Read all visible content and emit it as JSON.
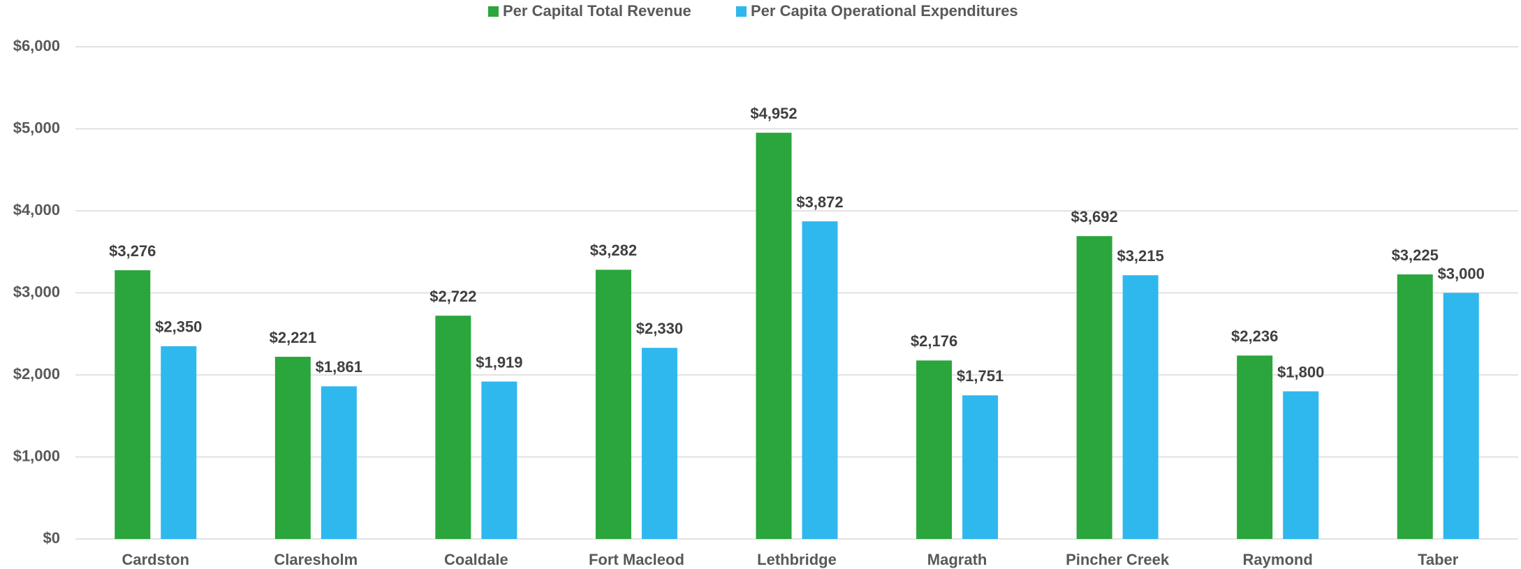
{
  "chart_data": {
    "type": "bar",
    "categories": [
      "Cardston",
      "Claresholm",
      "Coaldale",
      "Fort Macleod",
      "Lethbridge",
      "Magrath",
      "Pincher Creek",
      "Raymond",
      "Taber"
    ],
    "series": [
      {
        "name": "Per Capital Total Revenue",
        "color": "#2aa63c",
        "values": [
          3276,
          2221,
          2722,
          3282,
          4952,
          2176,
          3692,
          2236,
          3225
        ],
        "value_labels": [
          "$3,276",
          "$2,221",
          "$2,722",
          "$3,282",
          "$4,952",
          "$2,176",
          "$3,692",
          "$2,236",
          "$3,225"
        ]
      },
      {
        "name": "Per Capita Operational Expenditures",
        "color": "#2eb8ee",
        "values": [
          2350,
          1861,
          1919,
          2330,
          3872,
          1751,
          3215,
          1800,
          3000
        ],
        "value_labels": [
          "$2,350",
          "$1,861",
          "$1,919",
          "$2,330",
          "$3,872",
          "$1,751",
          "$3,215",
          "$1,800",
          "$3,000"
        ]
      }
    ],
    "ylim": [
      0,
      6000
    ],
    "yticks": [
      {
        "value": 0,
        "label": "$0"
      },
      {
        "value": 1000,
        "label": "$1,000"
      },
      {
        "value": 2000,
        "label": "$2,000"
      },
      {
        "value": 3000,
        "label": "$3,000"
      },
      {
        "value": 4000,
        "label": "$4,000"
      },
      {
        "value": 5000,
        "label": "$5,000"
      },
      {
        "value": 6000,
        "label": "$6,000"
      }
    ],
    "grid": true,
    "legend": "top"
  }
}
